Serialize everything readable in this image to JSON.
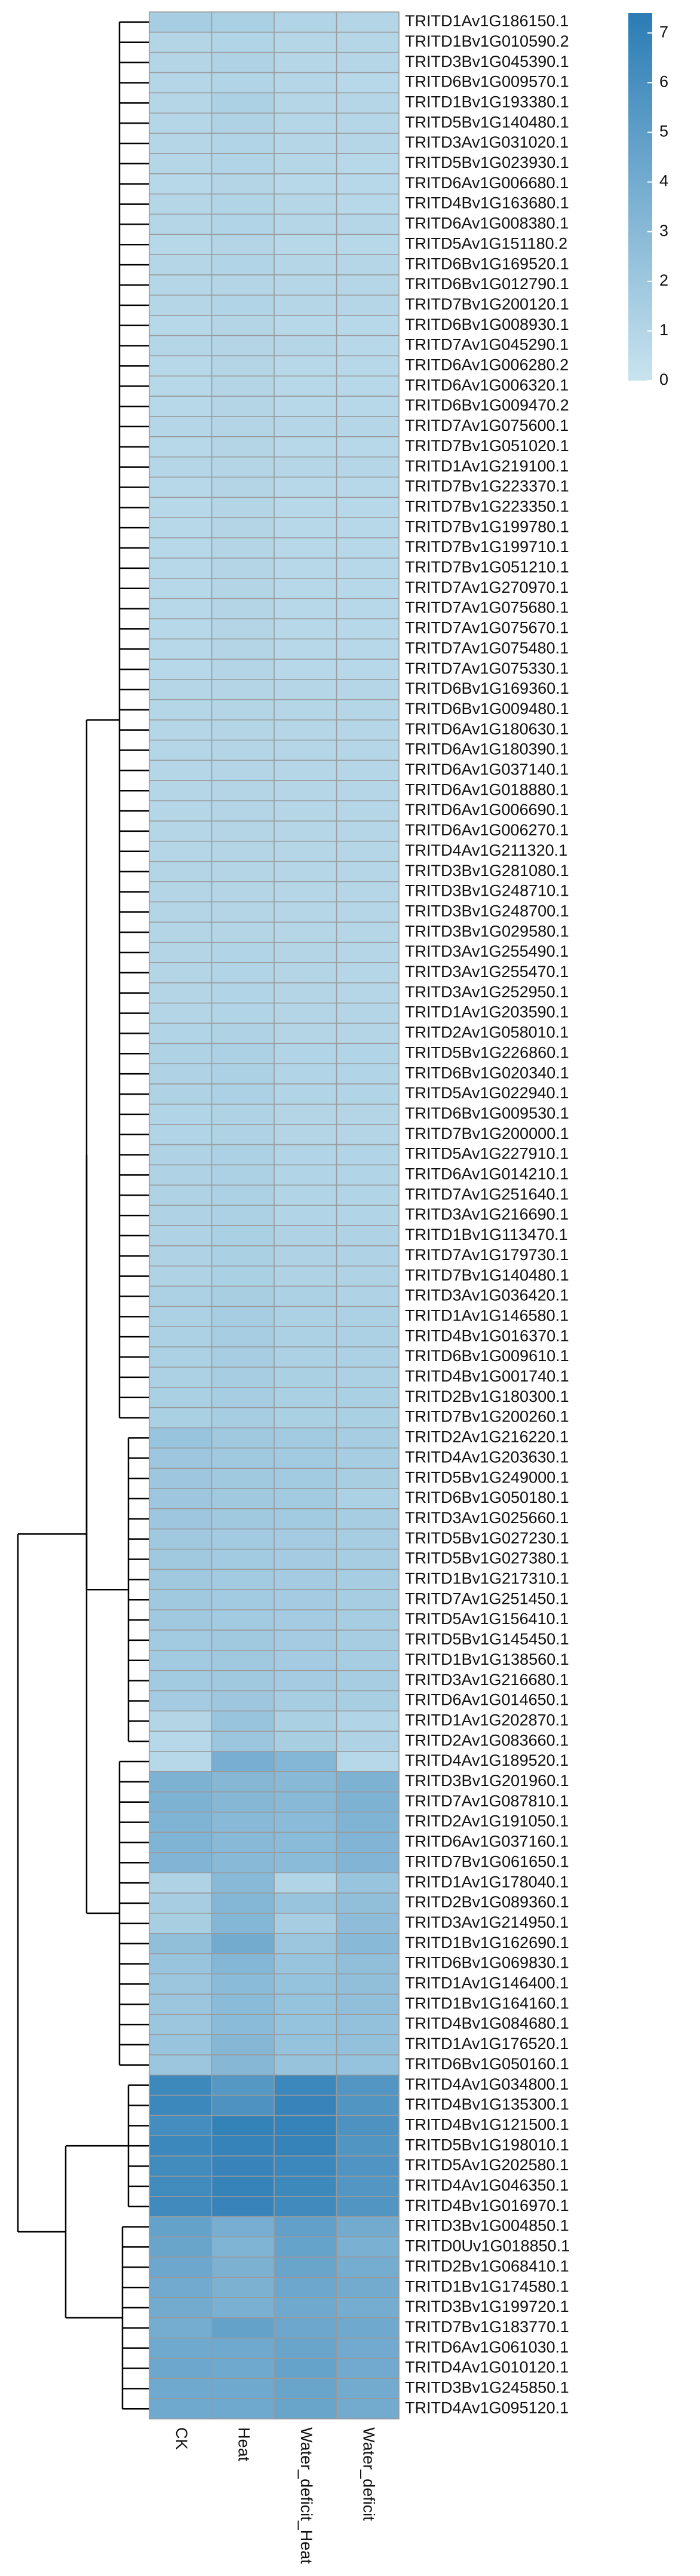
{
  "chart_data": {
    "type": "heatmap",
    "columns": [
      "CK",
      "Heat",
      "Water_deficit_Heat",
      "Water_deficit"
    ],
    "rows": [
      "TRITD1Av1G186150.1",
      "TRITD1Bv1G010590.2",
      "TRITD3Bv1G045390.1",
      "TRITD6Bv1G009570.1",
      "TRITD1Bv1G193380.1",
      "TRITD5Bv1G140480.1",
      "TRITD3Av1G031020.1",
      "TRITD5Bv1G023930.1",
      "TRITD6Av1G006680.1",
      "TRITD4Bv1G163680.1",
      "TRITD6Av1G008380.1",
      "TRITD5Av1G151180.2",
      "TRITD6Bv1G169520.1",
      "TRITD6Bv1G012790.1",
      "TRITD7Bv1G200120.1",
      "TRITD6Bv1G008930.1",
      "TRITD7Av1G045290.1",
      "TRITD6Av1G006280.2",
      "TRITD6Av1G006320.1",
      "TRITD6Bv1G009470.2",
      "TRITD7Av1G075600.1",
      "TRITD7Bv1G051020.1",
      "TRITD1Av1G219100.1",
      "TRITD7Bv1G223370.1",
      "TRITD7Bv1G223350.1",
      "TRITD7Bv1G199780.1",
      "TRITD7Bv1G199710.1",
      "TRITD7Bv1G051210.1",
      "TRITD7Av1G270970.1",
      "TRITD7Av1G075680.1",
      "TRITD7Av1G075670.1",
      "TRITD7Av1G075480.1",
      "TRITD7Av1G075330.1",
      "TRITD6Bv1G169360.1",
      "TRITD6Bv1G009480.1",
      "TRITD6Av1G180630.1",
      "TRITD6Av1G180390.1",
      "TRITD6Av1G037140.1",
      "TRITD6Av1G018880.1",
      "TRITD6Av1G006690.1",
      "TRITD6Av1G006270.1",
      "TRITD4Av1G211320.1",
      "TRITD3Bv1G281080.1",
      "TRITD3Bv1G248710.1",
      "TRITD3Bv1G248700.1",
      "TRITD3Bv1G029580.1",
      "TRITD3Av1G255490.1",
      "TRITD3Av1G255470.1",
      "TRITD3Av1G252950.1",
      "TRITD1Av1G203590.1",
      "TRITD2Av1G058010.1",
      "TRITD5Bv1G226860.1",
      "TRITD6Bv1G020340.1",
      "TRITD5Av1G022940.1",
      "TRITD6Bv1G009530.1",
      "TRITD7Bv1G200000.1",
      "TRITD5Av1G227910.1",
      "TRITD6Av1G014210.1",
      "TRITD7Av1G251640.1",
      "TRITD3Av1G216690.1",
      "TRITD1Bv1G113470.1",
      "TRITD7Av1G179730.1",
      "TRITD7Bv1G140480.1",
      "TRITD3Av1G036420.1",
      "TRITD1Av1G146580.1",
      "TRITD4Bv1G016370.1",
      "TRITD6Bv1G009610.1",
      "TRITD4Bv1G001740.1",
      "TRITD2Bv1G180300.1",
      "TRITD7Bv1G200260.1",
      "TRITD2Av1G216220.1",
      "TRITD4Av1G203630.1",
      "TRITD5Bv1G249000.1",
      "TRITD6Bv1G050180.1",
      "TRITD3Av1G025660.1",
      "TRITD5Bv1G027230.1",
      "TRITD5Bv1G027380.1",
      "TRITD1Bv1G217310.1",
      "TRITD7Av1G251450.1",
      "TRITD5Av1G156410.1",
      "TRITD5Bv1G145450.1",
      "TRITD1Bv1G138560.1",
      "TRITD3Av1G216680.1",
      "TRITD6Av1G014650.1",
      "TRITD1Av1G202870.1",
      "TRITD2Av1G083660.1",
      "TRITD4Av1G189520.1",
      "TRITD3Bv1G201960.1",
      "TRITD7Av1G087810.1",
      "TRITD2Av1G191050.1",
      "TRITD6Av1G037160.1",
      "TRITD7Bv1G061650.1",
      "TRITD1Av1G178040.1",
      "TRITD2Bv1G089360.1",
      "TRITD3Av1G214950.1",
      "TRITD1Bv1G162690.1",
      "TRITD6Bv1G069830.1",
      "TRITD1Av1G146400.1",
      "TRITD1Bv1G164160.1",
      "TRITD4Bv1G084680.1",
      "TRITD1Av1G176520.1",
      "TRITD6Bv1G050160.1",
      "TRITD4Av1G034800.1",
      "TRITD4Bv1G135300.1",
      "TRITD4Bv1G121500.1",
      "TRITD5Bv1G198010.1",
      "TRITD5Av1G202580.1",
      "TRITD4Av1G046350.1",
      "TRITD4Bv1G016970.1",
      "TRITD3Bv1G004850.1",
      "TRITD0Uv1G018850.1",
      "TRITD2Bv1G068410.1",
      "TRITD1Bv1G174580.1",
      "TRITD3Bv1G199720.1",
      "TRITD7Bv1G183770.1",
      "TRITD6Av1G061030.1",
      "TRITD4Av1G010120.1",
      "TRITD3Bv1G245850.1",
      "TRITD4Av1G095120.1"
    ],
    "values": [
      [
        1.6,
        1.4,
        1.1,
        1.0
      ],
      [
        1.0,
        1.1,
        0.9,
        0.9
      ],
      [
        1.0,
        1.2,
        0.9,
        0.9
      ],
      [
        0.9,
        1.1,
        0.9,
        0.8
      ],
      [
        0.9,
        1.3,
        0.9,
        0.9
      ],
      [
        0.9,
        1.2,
        0.9,
        0.9
      ],
      [
        0.9,
        1.1,
        0.9,
        0.9
      ],
      [
        0.9,
        1.1,
        0.9,
        0.8
      ],
      [
        0.8,
        1.0,
        0.8,
        0.8
      ],
      [
        0.9,
        1.1,
        0.9,
        0.8
      ],
      [
        0.9,
        1.1,
        0.9,
        0.9
      ],
      [
        0.8,
        1.0,
        0.8,
        0.8
      ],
      [
        0.9,
        1.1,
        0.9,
        0.9
      ],
      [
        0.9,
        1.0,
        0.9,
        0.9
      ],
      [
        0.9,
        1.1,
        0.9,
        0.9
      ],
      [
        0.8,
        1.0,
        0.8,
        0.8
      ],
      [
        0.9,
        1.0,
        0.9,
        0.8
      ],
      [
        0.8,
        1.0,
        0.8,
        0.8
      ],
      [
        0.8,
        1.0,
        0.8,
        0.8
      ],
      [
        0.8,
        1.0,
        0.8,
        0.8
      ],
      [
        0.9,
        1.0,
        0.9,
        0.9
      ],
      [
        0.8,
        1.0,
        0.8,
        0.8
      ],
      [
        0.9,
        1.0,
        0.9,
        0.9
      ],
      [
        0.8,
        1.0,
        0.8,
        0.8
      ],
      [
        0.8,
        1.0,
        0.8,
        0.8
      ],
      [
        0.8,
        1.0,
        0.8,
        0.8
      ],
      [
        0.8,
        1.0,
        0.8,
        0.8
      ],
      [
        0.8,
        1.0,
        0.8,
        0.8
      ],
      [
        0.8,
        1.0,
        0.8,
        0.8
      ],
      [
        0.8,
        1.0,
        0.8,
        0.8
      ],
      [
        0.8,
        1.0,
        0.8,
        0.8
      ],
      [
        0.8,
        1.0,
        0.8,
        0.8
      ],
      [
        0.8,
        1.0,
        0.8,
        0.8
      ],
      [
        0.9,
        1.0,
        0.9,
        0.9
      ],
      [
        0.9,
        1.0,
        0.9,
        0.9
      ],
      [
        0.9,
        1.0,
        0.9,
        0.9
      ],
      [
        0.9,
        1.0,
        0.9,
        0.9
      ],
      [
        0.9,
        1.0,
        0.9,
        0.9
      ],
      [
        0.9,
        1.0,
        0.9,
        0.9
      ],
      [
        0.9,
        1.0,
        0.9,
        0.9
      ],
      [
        0.9,
        1.0,
        0.9,
        0.9
      ],
      [
        0.9,
        1.0,
        0.9,
        0.9
      ],
      [
        1.0,
        1.0,
        0.9,
        0.9
      ],
      [
        1.0,
        1.0,
        0.9,
        0.9
      ],
      [
        1.0,
        1.0,
        0.9,
        0.9
      ],
      [
        1.0,
        1.0,
        0.9,
        0.9
      ],
      [
        1.0,
        1.1,
        1.0,
        0.9
      ],
      [
        1.0,
        1.1,
        1.0,
        0.9
      ],
      [
        1.0,
        1.1,
        1.0,
        0.9
      ],
      [
        1.0,
        1.1,
        1.0,
        1.0
      ],
      [
        1.1,
        1.2,
        1.0,
        1.0
      ],
      [
        1.2,
        1.3,
        1.1,
        1.1
      ],
      [
        1.2,
        1.3,
        1.1,
        1.1
      ],
      [
        1.2,
        1.3,
        1.1,
        1.1
      ],
      [
        1.1,
        1.2,
        1.0,
        1.0
      ],
      [
        1.1,
        1.2,
        1.0,
        1.0
      ],
      [
        1.2,
        1.3,
        1.1,
        1.1
      ],
      [
        1.2,
        1.3,
        1.1,
        1.1
      ],
      [
        1.2,
        1.3,
        1.1,
        1.1
      ],
      [
        1.2,
        1.3,
        1.1,
        1.1
      ],
      [
        1.2,
        1.4,
        1.2,
        1.2
      ],
      [
        1.2,
        1.4,
        1.2,
        1.2
      ],
      [
        1.2,
        1.4,
        1.2,
        1.2
      ],
      [
        1.3,
        1.5,
        1.3,
        1.2
      ],
      [
        1.3,
        1.6,
        1.3,
        1.3
      ],
      [
        1.3,
        1.6,
        1.3,
        1.3
      ],
      [
        1.3,
        1.6,
        1.3,
        1.3
      ],
      [
        1.3,
        1.6,
        1.4,
        1.3
      ],
      [
        1.4,
        1.6,
        1.4,
        1.4
      ],
      [
        1.4,
        1.6,
        1.4,
        1.4
      ],
      [
        2.2,
        1.9,
        1.8,
        1.6
      ],
      [
        2.0,
        1.9,
        1.8,
        1.6
      ],
      [
        2.0,
        1.9,
        1.8,
        1.5
      ],
      [
        2.0,
        1.9,
        1.8,
        1.3
      ],
      [
        2.0,
        1.9,
        1.8,
        1.6
      ],
      [
        1.9,
        1.8,
        1.7,
        1.6
      ],
      [
        1.9,
        1.8,
        1.7,
        1.6
      ],
      [
        1.9,
        1.8,
        1.7,
        1.6
      ],
      [
        1.9,
        1.8,
        1.7,
        1.6
      ],
      [
        1.9,
        1.8,
        1.7,
        1.6
      ],
      [
        1.8,
        1.9,
        1.7,
        1.6
      ],
      [
        1.8,
        1.9,
        1.7,
        1.6
      ],
      [
        1.8,
        1.9,
        1.7,
        1.6
      ],
      [
        1.7,
        2.0,
        1.6,
        1.5
      ],
      [
        1.0,
        2.2,
        1.4,
        1.1
      ],
      [
        0.8,
        2.1,
        1.5,
        1.2
      ],
      [
        0.8,
        3.8,
        3.2,
        0.8
      ],
      [
        3.5,
        3.1,
        3.0,
        3.5
      ],
      [
        3.5,
        3.1,
        3.0,
        3.5
      ],
      [
        3.4,
        3.0,
        2.9,
        3.4
      ],
      [
        3.4,
        3.0,
        2.9,
        3.3
      ],
      [
        3.3,
        3.0,
        2.9,
        3.3
      ],
      [
        1.2,
        3.0,
        1.1,
        2.2
      ],
      [
        1.6,
        3.2,
        2.2,
        2.6
      ],
      [
        1.5,
        3.2,
        1.6,
        2.7
      ],
      [
        2.6,
        4.0,
        2.1,
        3.0
      ],
      [
        2.2,
        3.2,
        2.2,
        2.6
      ],
      [
        2.1,
        2.9,
        2.4,
        2.6
      ],
      [
        2.1,
        2.9,
        2.4,
        2.6
      ],
      [
        2.1,
        2.9,
        2.4,
        2.5
      ],
      [
        2.2,
        3.1,
        2.4,
        2.5
      ],
      [
        2.1,
        3.1,
        2.3,
        2.4
      ],
      [
        6.5,
        5.4,
        6.6,
        5.5
      ],
      [
        6.6,
        5.8,
        6.8,
        5.6
      ],
      [
        6.2,
        7.0,
        6.9,
        5.8
      ],
      [
        6.6,
        6.9,
        6.9,
        5.6
      ],
      [
        6.3,
        6.8,
        6.6,
        5.7
      ],
      [
        6.3,
        6.9,
        6.5,
        5.5
      ],
      [
        6.4,
        6.8,
        6.4,
        5.6
      ],
      [
        4.7,
        3.8,
        4.8,
        4.0
      ],
      [
        4.5,
        3.4,
        4.6,
        3.7
      ],
      [
        4.3,
        3.6,
        4.5,
        3.9
      ],
      [
        4.1,
        3.6,
        4.3,
        4.0
      ],
      [
        4.0,
        3.7,
        4.2,
        3.9
      ],
      [
        3.9,
        4.7,
        4.3,
        4.2
      ],
      [
        4.2,
        4.2,
        4.5,
        4.1
      ],
      [
        4.3,
        4.2,
        4.6,
        4.1
      ],
      [
        4.2,
        4.2,
        4.5,
        4.0
      ],
      [
        4.2,
        4.2,
        4.5,
        4.0
      ]
    ],
    "zlim": [
      0,
      7.4
    ],
    "zticks": [
      0,
      1,
      2,
      3,
      4,
      5,
      6,
      7
    ],
    "colors": [
      "#c8e3ee",
      "#2b7cb5"
    ],
    "cell_border": "#9a9a9a"
  }
}
